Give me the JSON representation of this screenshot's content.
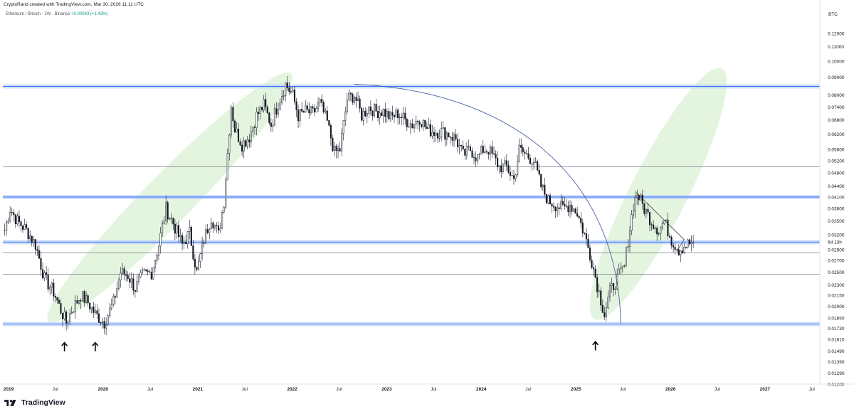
{
  "header": {
    "attribution": "CryptoRand created with TradingView.com, Mar 30, 2026 11:11 UTC",
    "symbol_line": "Ethereum / Bitcoin · 1W · Binance",
    "change": "+0.00043 (+1.43%)"
  },
  "footer": {
    "brand": "TradingView"
  },
  "chart_data": {
    "type": "candlestick",
    "title": "",
    "xlabel": "",
    "ylabel": "",
    "y_unit": "BTC",
    "y_scale": "log",
    "ylim": [
      0.012,
      0.13
    ],
    "xlim": [
      "2018-12-10",
      "2027-08-01"
    ],
    "grid": false,
    "y_ticks": [
      "0.12000",
      "0.11000",
      "0.10000",
      "0.09000",
      "0.08000",
      "0.07400",
      "0.06800",
      "0.06200",
      "0.05600",
      "0.05200",
      "0.04800",
      "0.04400",
      "0.04100",
      "0.03800",
      "0.03500",
      "0.03200",
      "0.02900",
      "0.02700",
      "0.02500",
      "0.02300",
      "0.02150",
      "0.02000",
      "0.01850",
      "0.01730",
      "0.01610",
      "0.01490",
      "0.01390",
      "0.01290",
      "0.01200"
    ],
    "countdown_label": "6d 13h",
    "x_ticks": [
      {
        "label": "2019",
        "date": "2019-01-01",
        "bold": true
      },
      {
        "label": "Jul",
        "date": "2019-07-01",
        "bold": false
      },
      {
        "label": "2020",
        "date": "2020-01-01",
        "bold": true
      },
      {
        "label": "Jul",
        "date": "2020-07-01",
        "bold": false
      },
      {
        "label": "2021",
        "date": "2021-01-01",
        "bold": true
      },
      {
        "label": "Jul",
        "date": "2021-07-01",
        "bold": false
      },
      {
        "label": "2022",
        "date": "2022-01-01",
        "bold": true
      },
      {
        "label": "Jul",
        "date": "2022-07-01",
        "bold": false
      },
      {
        "label": "2023",
        "date": "2023-01-01",
        "bold": true
      },
      {
        "label": "Jul",
        "date": "2023-07-01",
        "bold": false
      },
      {
        "label": "2024",
        "date": "2024-01-01",
        "bold": true
      },
      {
        "label": "Jul",
        "date": "2024-07-01",
        "bold": false
      },
      {
        "label": "2025",
        "date": "2025-01-01",
        "bold": true
      },
      {
        "label": "Jul",
        "date": "2025-07-01",
        "bold": false
      },
      {
        "label": "2026",
        "date": "2026-01-01",
        "bold": true
      },
      {
        "label": "Jul",
        "date": "2026-07-01",
        "bold": false
      },
      {
        "label": "2027",
        "date": "2027-01-01",
        "bold": true
      },
      {
        "label": "Jul",
        "date": "2027-07-01",
        "bold": false
      }
    ],
    "price_path": [
      [
        "2018-12-17",
        0.033
      ],
      [
        "2019-01-07",
        0.038
      ],
      [
        "2019-02-04",
        0.035
      ],
      [
        "2019-03-11",
        0.033
      ],
      [
        "2019-04-15",
        0.03
      ],
      [
        "2019-05-20",
        0.024
      ],
      [
        "2019-06-24",
        0.022
      ],
      [
        "2019-07-22",
        0.0195
      ],
      [
        "2019-08-12",
        0.018
      ],
      [
        "2019-09-02",
        0.0195
      ],
      [
        "2019-10-07",
        0.0215
      ],
      [
        "2019-11-04",
        0.0205
      ],
      [
        "2019-12-02",
        0.019
      ],
      [
        "2020-01-06",
        0.018
      ],
      [
        "2020-02-10",
        0.0205
      ],
      [
        "2020-03-09",
        0.025
      ],
      [
        "2020-04-06",
        0.0245
      ],
      [
        "2020-05-04",
        0.0225
      ],
      [
        "2020-06-01",
        0.0245
      ],
      [
        "2020-07-06",
        0.025
      ],
      [
        "2020-08-03",
        0.03
      ],
      [
        "2020-08-31",
        0.038
      ],
      [
        "2020-09-28",
        0.0345
      ],
      [
        "2020-11-02",
        0.03
      ],
      [
        "2020-11-30",
        0.0325
      ],
      [
        "2020-12-28",
        0.025
      ],
      [
        "2021-01-25",
        0.031
      ],
      [
        "2021-02-22",
        0.036
      ],
      [
        "2021-03-22",
        0.032
      ],
      [
        "2021-04-12",
        0.04
      ],
      [
        "2021-05-10",
        0.075
      ],
      [
        "2021-05-24",
        0.064
      ],
      [
        "2021-06-21",
        0.058
      ],
      [
        "2021-07-19",
        0.061
      ],
      [
        "2021-08-16",
        0.07
      ],
      [
        "2021-09-13",
        0.075
      ],
      [
        "2021-10-11",
        0.066
      ],
      [
        "2021-11-08",
        0.076
      ],
      [
        "2021-12-06",
        0.086
      ],
      [
        "2022-01-03",
        0.08
      ],
      [
        "2022-01-24",
        0.07
      ],
      [
        "2022-02-21",
        0.072
      ],
      [
        "2022-03-21",
        0.071
      ],
      [
        "2022-04-18",
        0.076
      ],
      [
        "2022-05-16",
        0.067
      ],
      [
        "2022-06-13",
        0.055
      ],
      [
        "2022-07-04",
        0.056
      ],
      [
        "2022-08-01",
        0.078
      ],
      [
        "2022-08-29",
        0.08
      ],
      [
        "2022-09-26",
        0.07
      ],
      [
        "2022-10-24",
        0.074
      ],
      [
        "2022-11-21",
        0.072
      ],
      [
        "2022-12-19",
        0.072
      ],
      [
        "2023-01-16",
        0.069
      ],
      [
        "2023-02-13",
        0.071
      ],
      [
        "2023-03-13",
        0.068
      ],
      [
        "2023-04-10",
        0.066
      ],
      [
        "2023-05-08",
        0.069
      ],
      [
        "2023-06-05",
        0.064
      ],
      [
        "2023-07-03",
        0.063
      ],
      [
        "2023-07-31",
        0.063
      ],
      [
        "2023-08-28",
        0.062
      ],
      [
        "2023-09-25",
        0.06
      ],
      [
        "2023-10-23",
        0.054
      ],
      [
        "2023-11-20",
        0.056
      ],
      [
        "2023-12-18",
        0.053
      ],
      [
        "2024-01-08",
        0.056
      ],
      [
        "2024-01-29",
        0.056
      ],
      [
        "2024-02-19",
        0.053
      ],
      [
        "2024-03-11",
        0.05
      ],
      [
        "2024-04-08",
        0.05
      ],
      [
        "2024-05-06",
        0.046
      ],
      [
        "2024-05-27",
        0.056
      ],
      [
        "2024-06-24",
        0.054
      ],
      [
        "2024-07-22",
        0.052
      ],
      [
        "2024-08-19",
        0.044
      ],
      [
        "2024-09-16",
        0.04
      ],
      [
        "2024-10-14",
        0.039
      ],
      [
        "2024-11-11",
        0.038
      ],
      [
        "2024-12-09",
        0.039
      ],
      [
        "2025-01-06",
        0.037
      ],
      [
        "2025-02-03",
        0.032
      ],
      [
        "2025-03-03",
        0.027
      ],
      [
        "2025-03-24",
        0.023
      ],
      [
        "2025-04-21",
        0.019
      ],
      [
        "2025-05-12",
        0.022
      ],
      [
        "2025-06-09",
        0.024
      ],
      [
        "2025-07-07",
        0.026
      ],
      [
        "2025-07-21",
        0.031
      ],
      [
        "2025-08-11",
        0.039
      ],
      [
        "2025-08-25",
        0.042
      ],
      [
        "2025-09-22",
        0.038
      ],
      [
        "2025-10-20",
        0.035
      ],
      [
        "2025-11-17",
        0.033
      ],
      [
        "2025-12-08",
        0.035
      ],
      [
        "2026-01-05",
        0.031
      ],
      [
        "2026-02-02",
        0.029
      ],
      [
        "2026-03-02",
        0.03
      ],
      [
        "2026-03-30",
        0.0305
      ]
    ],
    "annotations": {
      "horizontal_levels_blue": [
        0.0848,
        0.041,
        0.0305,
        0.0178
      ],
      "horizontal_levels_gray": [
        0.05,
        0.0284,
        0.0247
      ],
      "bullish_channels": [
        {
          "from": [
            "2019-07-01",
            0.019
          ],
          "to": [
            "2021-12-01",
            0.088
          ]
        },
        {
          "from": [
            "2025-04-01",
            0.0195
          ],
          "to": [
            "2026-07-01",
            0.09
          ]
        }
      ],
      "curve": {
        "from": [
          "2022-08-29",
          0.086
        ],
        "to": [
          "2025-06-23",
          0.0178
        ]
      },
      "triangle": [
        [
          "2025-08-18",
          0.0425
        ],
        [
          "2026-02-23",
          0.031
        ],
        [
          "2026-01-26",
          0.0288
        ]
      ],
      "arrows": [
        [
          "2019-08-05",
          0.0155
        ],
        [
          "2019-12-02",
          0.0155
        ],
        [
          "2025-03-17",
          0.0156
        ]
      ]
    }
  }
}
